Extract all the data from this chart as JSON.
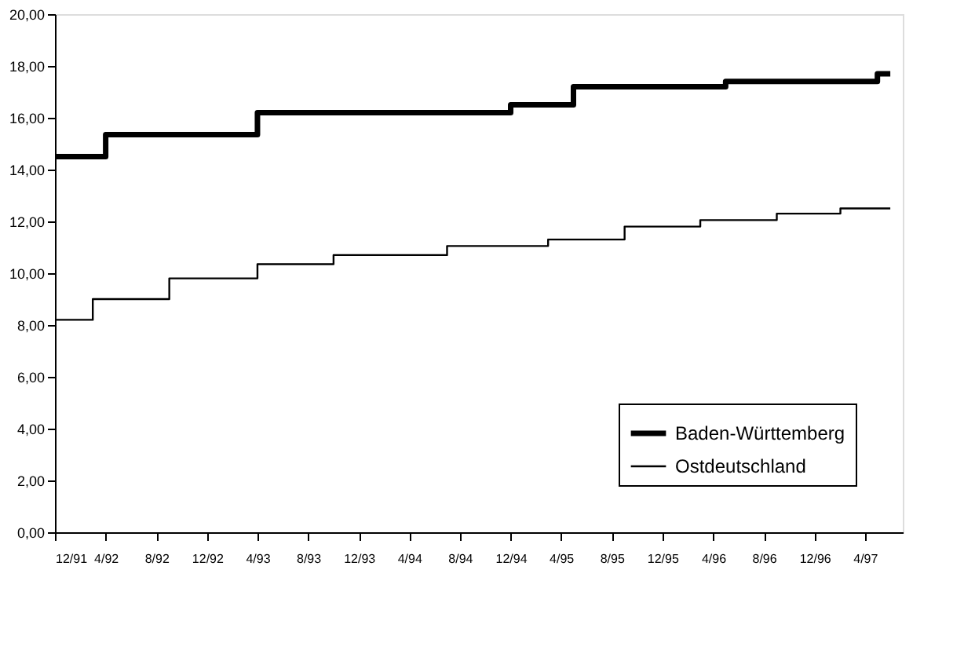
{
  "chart_data": {
    "type": "step",
    "legend": "bottom right",
    "grid": false,
    "marker": "none",
    "line_style": "solid",
    "xlim": [
      "1991-12",
      "1997-07"
    ],
    "xticks": [
      {
        "value": "1991-12",
        "label": "12/91"
      },
      {
        "value": "1992-04",
        "label": "4/92"
      },
      {
        "value": "1992-08",
        "label": "8/92"
      },
      {
        "value": "1992-12",
        "label": "12/92"
      },
      {
        "value": "1993-04",
        "label": "4/93"
      },
      {
        "value": "1993-08",
        "label": "8/93"
      },
      {
        "value": "1993-12",
        "label": "12/93"
      },
      {
        "value": "1994-04",
        "label": "4/94"
      },
      {
        "value": "1994-08",
        "label": "8/94"
      },
      {
        "value": "1994-12",
        "label": "12/94"
      },
      {
        "value": "1995-04",
        "label": "4/95"
      },
      {
        "value": "1995-08",
        "label": "8/95"
      },
      {
        "value": "1995-12",
        "label": "12/95"
      },
      {
        "value": "1996-04",
        "label": "4/96"
      },
      {
        "value": "1996-08",
        "label": "8/96"
      },
      {
        "value": "1996-12",
        "label": "12/96"
      },
      {
        "value": "1997-04",
        "label": "4/97"
      }
    ],
    "ylim": [
      0,
      20
    ],
    "yticks": [
      {
        "value": 0,
        "label": "0,00"
      },
      {
        "value": 2,
        "label": "2,00"
      },
      {
        "value": 4,
        "label": "4,00"
      },
      {
        "value": 6,
        "label": "6,00"
      },
      {
        "value": 8,
        "label": "8,00"
      },
      {
        "value": 10,
        "label": "10,00"
      },
      {
        "value": 12,
        "label": "12,00"
      },
      {
        "value": 14,
        "label": "14,00"
      },
      {
        "value": 16,
        "label": "16,00"
      },
      {
        "value": 18,
        "label": "18,00"
      },
      {
        "value": 20,
        "label": "20,00"
      }
    ],
    "series": [
      {
        "name": "Baden-Württemberg",
        "color": "#000000",
        "x": [
          "1991-12",
          "1992-04",
          "1993-04",
          "1994-12",
          "1995-05",
          "1996-05",
          "1997-05",
          "1997-06"
        ],
        "values": [
          14.5,
          15.35,
          16.2,
          16.5,
          17.2,
          17.4,
          17.7,
          17.7
        ]
      },
      {
        "name": "Ostdeutschland",
        "color": "#000000",
        "x": [
          "1991-12",
          "1992-03",
          "1992-09",
          "1993-04",
          "1993-10",
          "1994-07",
          "1995-03",
          "1995-09",
          "1996-03",
          "1996-09",
          "1997-02",
          "1997-06"
        ],
        "values": [
          8.2,
          9.0,
          9.8,
          10.35,
          10.7,
          11.05,
          11.3,
          11.8,
          12.05,
          12.3,
          12.5,
          12.5
        ]
      }
    ]
  }
}
